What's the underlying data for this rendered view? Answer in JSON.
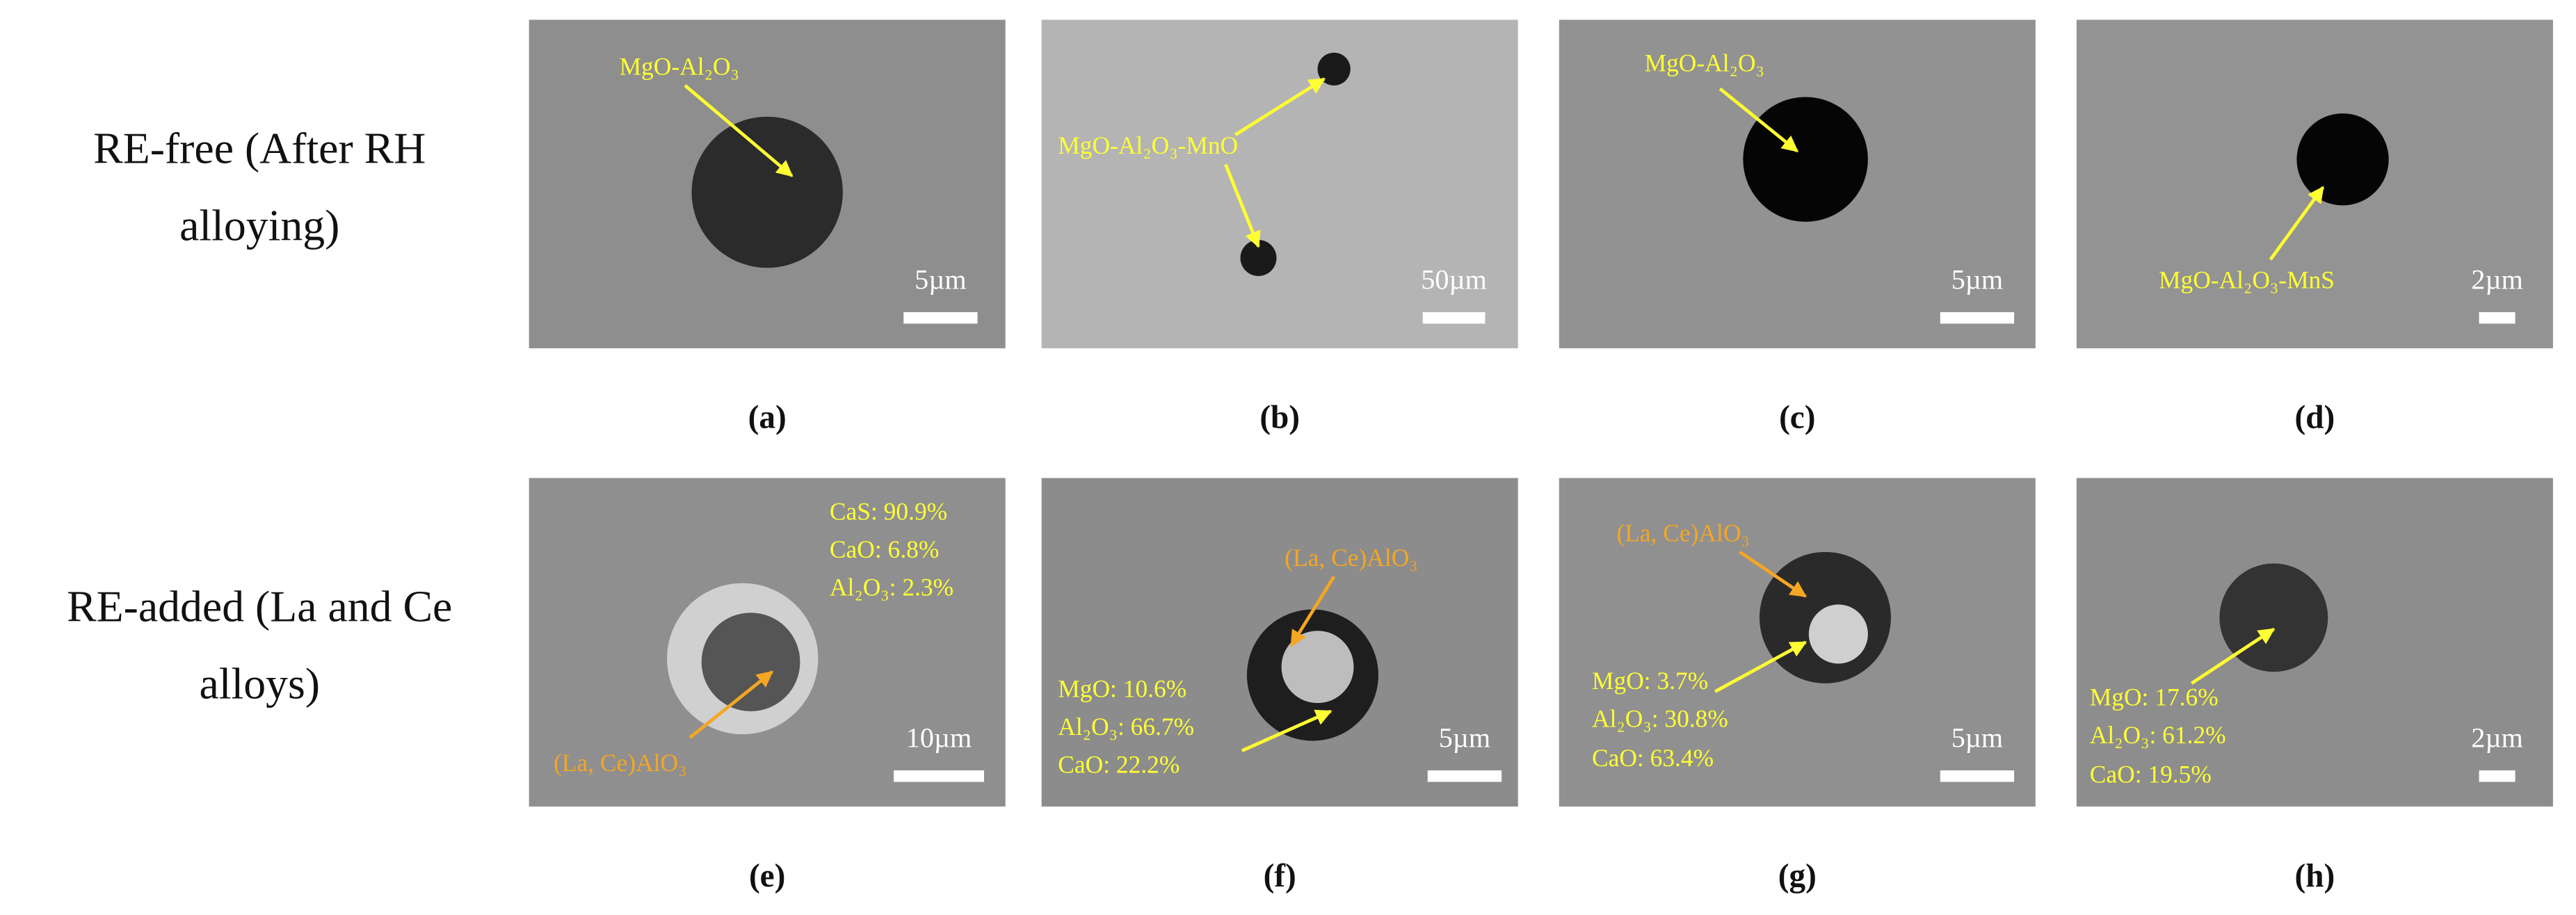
{
  "rows": [
    {
      "label_lines": [
        "RE-free (After RH",
        "alloying)"
      ]
    },
    {
      "label_lines": [
        "RE-added (La and Ce",
        "alloys)"
      ]
    }
  ],
  "panels": [
    {
      "caption": "(a)",
      "scale_bar": "5µm",
      "annotations": [
        "MgO-Al₂O₃"
      ]
    },
    {
      "caption": "(b)",
      "scale_bar": "50µm",
      "annotations": [
        "MgO-Al₂O₃-MnO"
      ]
    },
    {
      "caption": "(c)",
      "scale_bar": "5µm",
      "annotations": [
        "MgO-Al₂O₃"
      ]
    },
    {
      "caption": "(d)",
      "scale_bar": "2µm",
      "annotations": [
        "MgO-Al₂O₃-MnS"
      ]
    },
    {
      "caption": "(e)",
      "scale_bar": "10µm",
      "annotations": [
        "CaS: 90.9%",
        "CaO: 6.8%",
        "Al₂O₃: 2.3%",
        "(La, Ce)AlO₃"
      ]
    },
    {
      "caption": "(f)",
      "scale_bar": "5µm",
      "annotations": [
        "(La, Ce)AlO₃",
        "MgO: 10.6%",
        "Al₂O₃: 66.7%",
        "CaO: 22.2%"
      ]
    },
    {
      "caption": "(g)",
      "scale_bar": "5µm",
      "annotations": [
        "(La, Ce)AlO₃",
        "MgO: 3.7%",
        "Al₂O₃: 30.8%",
        "CaO: 63.4%"
      ]
    },
    {
      "caption": "(h)",
      "scale_bar": "2µm",
      "annotations": [
        "MgO: 17.6%",
        "Al₂O₃: 61.2%",
        "CaO: 19.5%"
      ]
    }
  ]
}
